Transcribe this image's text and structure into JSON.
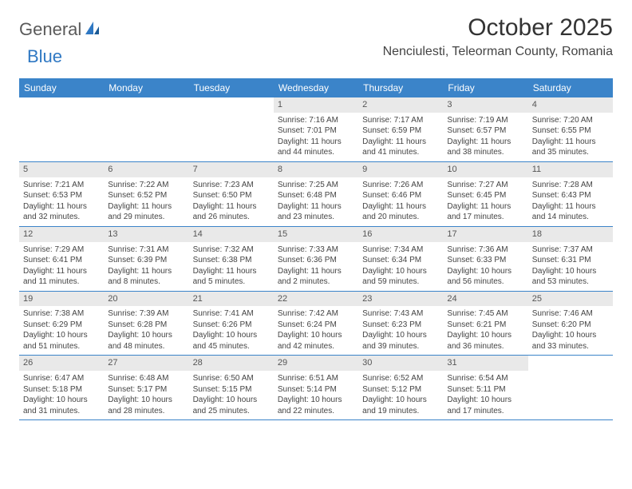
{
  "logo": {
    "text1": "General",
    "text2": "Blue"
  },
  "title": "October 2025",
  "location": "Nenciulesti, Teleorman County, Romania",
  "colors": {
    "header_bg": "#3b84c9",
    "header_fg": "#ffffff",
    "strip_bg": "#e9e9e9",
    "rule": "#3b84c9",
    "logo_gray": "#5a5a5a",
    "logo_blue": "#2f78c3"
  },
  "weekdays": [
    "Sunday",
    "Monday",
    "Tuesday",
    "Wednesday",
    "Thursday",
    "Friday",
    "Saturday"
  ],
  "weeks": [
    [
      {
        "n": "",
        "sr": "",
        "ss": "",
        "dl": ""
      },
      {
        "n": "",
        "sr": "",
        "ss": "",
        "dl": ""
      },
      {
        "n": "",
        "sr": "",
        "ss": "",
        "dl": ""
      },
      {
        "n": "1",
        "sr": "Sunrise: 7:16 AM",
        "ss": "Sunset: 7:01 PM",
        "dl": "Daylight: 11 hours and 44 minutes."
      },
      {
        "n": "2",
        "sr": "Sunrise: 7:17 AM",
        "ss": "Sunset: 6:59 PM",
        "dl": "Daylight: 11 hours and 41 minutes."
      },
      {
        "n": "3",
        "sr": "Sunrise: 7:19 AM",
        "ss": "Sunset: 6:57 PM",
        "dl": "Daylight: 11 hours and 38 minutes."
      },
      {
        "n": "4",
        "sr": "Sunrise: 7:20 AM",
        "ss": "Sunset: 6:55 PM",
        "dl": "Daylight: 11 hours and 35 minutes."
      }
    ],
    [
      {
        "n": "5",
        "sr": "Sunrise: 7:21 AM",
        "ss": "Sunset: 6:53 PM",
        "dl": "Daylight: 11 hours and 32 minutes."
      },
      {
        "n": "6",
        "sr": "Sunrise: 7:22 AM",
        "ss": "Sunset: 6:52 PM",
        "dl": "Daylight: 11 hours and 29 minutes."
      },
      {
        "n": "7",
        "sr": "Sunrise: 7:23 AM",
        "ss": "Sunset: 6:50 PM",
        "dl": "Daylight: 11 hours and 26 minutes."
      },
      {
        "n": "8",
        "sr": "Sunrise: 7:25 AM",
        "ss": "Sunset: 6:48 PM",
        "dl": "Daylight: 11 hours and 23 minutes."
      },
      {
        "n": "9",
        "sr": "Sunrise: 7:26 AM",
        "ss": "Sunset: 6:46 PM",
        "dl": "Daylight: 11 hours and 20 minutes."
      },
      {
        "n": "10",
        "sr": "Sunrise: 7:27 AM",
        "ss": "Sunset: 6:45 PM",
        "dl": "Daylight: 11 hours and 17 minutes."
      },
      {
        "n": "11",
        "sr": "Sunrise: 7:28 AM",
        "ss": "Sunset: 6:43 PM",
        "dl": "Daylight: 11 hours and 14 minutes."
      }
    ],
    [
      {
        "n": "12",
        "sr": "Sunrise: 7:29 AM",
        "ss": "Sunset: 6:41 PM",
        "dl": "Daylight: 11 hours and 11 minutes."
      },
      {
        "n": "13",
        "sr": "Sunrise: 7:31 AM",
        "ss": "Sunset: 6:39 PM",
        "dl": "Daylight: 11 hours and 8 minutes."
      },
      {
        "n": "14",
        "sr": "Sunrise: 7:32 AM",
        "ss": "Sunset: 6:38 PM",
        "dl": "Daylight: 11 hours and 5 minutes."
      },
      {
        "n": "15",
        "sr": "Sunrise: 7:33 AM",
        "ss": "Sunset: 6:36 PM",
        "dl": "Daylight: 11 hours and 2 minutes."
      },
      {
        "n": "16",
        "sr": "Sunrise: 7:34 AM",
        "ss": "Sunset: 6:34 PM",
        "dl": "Daylight: 10 hours and 59 minutes."
      },
      {
        "n": "17",
        "sr": "Sunrise: 7:36 AM",
        "ss": "Sunset: 6:33 PM",
        "dl": "Daylight: 10 hours and 56 minutes."
      },
      {
        "n": "18",
        "sr": "Sunrise: 7:37 AM",
        "ss": "Sunset: 6:31 PM",
        "dl": "Daylight: 10 hours and 53 minutes."
      }
    ],
    [
      {
        "n": "19",
        "sr": "Sunrise: 7:38 AM",
        "ss": "Sunset: 6:29 PM",
        "dl": "Daylight: 10 hours and 51 minutes."
      },
      {
        "n": "20",
        "sr": "Sunrise: 7:39 AM",
        "ss": "Sunset: 6:28 PM",
        "dl": "Daylight: 10 hours and 48 minutes."
      },
      {
        "n": "21",
        "sr": "Sunrise: 7:41 AM",
        "ss": "Sunset: 6:26 PM",
        "dl": "Daylight: 10 hours and 45 minutes."
      },
      {
        "n": "22",
        "sr": "Sunrise: 7:42 AM",
        "ss": "Sunset: 6:24 PM",
        "dl": "Daylight: 10 hours and 42 minutes."
      },
      {
        "n": "23",
        "sr": "Sunrise: 7:43 AM",
        "ss": "Sunset: 6:23 PM",
        "dl": "Daylight: 10 hours and 39 minutes."
      },
      {
        "n": "24",
        "sr": "Sunrise: 7:45 AM",
        "ss": "Sunset: 6:21 PM",
        "dl": "Daylight: 10 hours and 36 minutes."
      },
      {
        "n": "25",
        "sr": "Sunrise: 7:46 AM",
        "ss": "Sunset: 6:20 PM",
        "dl": "Daylight: 10 hours and 33 minutes."
      }
    ],
    [
      {
        "n": "26",
        "sr": "Sunrise: 6:47 AM",
        "ss": "Sunset: 5:18 PM",
        "dl": "Daylight: 10 hours and 31 minutes."
      },
      {
        "n": "27",
        "sr": "Sunrise: 6:48 AM",
        "ss": "Sunset: 5:17 PM",
        "dl": "Daylight: 10 hours and 28 minutes."
      },
      {
        "n": "28",
        "sr": "Sunrise: 6:50 AM",
        "ss": "Sunset: 5:15 PM",
        "dl": "Daylight: 10 hours and 25 minutes."
      },
      {
        "n": "29",
        "sr": "Sunrise: 6:51 AM",
        "ss": "Sunset: 5:14 PM",
        "dl": "Daylight: 10 hours and 22 minutes."
      },
      {
        "n": "30",
        "sr": "Sunrise: 6:52 AM",
        "ss": "Sunset: 5:12 PM",
        "dl": "Daylight: 10 hours and 19 minutes."
      },
      {
        "n": "31",
        "sr": "Sunrise: 6:54 AM",
        "ss": "Sunset: 5:11 PM",
        "dl": "Daylight: 10 hours and 17 minutes."
      },
      {
        "n": "",
        "sr": "",
        "ss": "",
        "dl": ""
      }
    ]
  ]
}
